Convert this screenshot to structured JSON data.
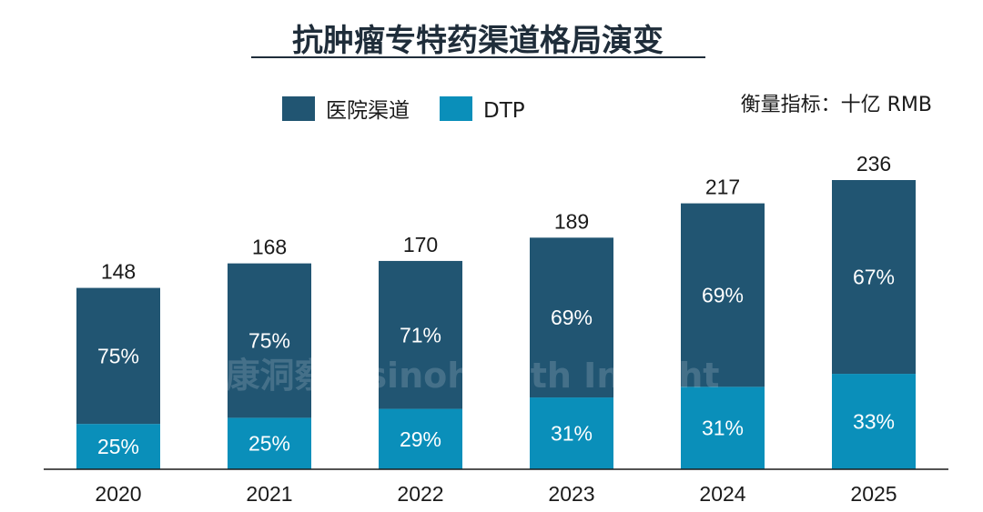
{
  "chart_data": {
    "type": "bar",
    "stacked": true,
    "title": "抗肿瘤专特药渠道格局演变",
    "unit_note": "衡量指标：十亿 RMB",
    "watermark": "中康洞察 · sinohealth Insight",
    "categories": [
      "2020",
      "2021",
      "2022",
      "2023",
      "2024",
      "2025"
    ],
    "totals": [
      148,
      168,
      170,
      189,
      217,
      236
    ],
    "series": [
      {
        "name": "DTP",
        "color": "#0a8fba",
        "share_pct": [
          25,
          25,
          29,
          31,
          31,
          33
        ]
      },
      {
        "name": "医院渠道",
        "color": "#215572",
        "share_pct": [
          75,
          75,
          71,
          69,
          69,
          67
        ]
      }
    ],
    "legend_order": [
      "医院渠道",
      "DTP"
    ],
    "legend_position": "top-left",
    "ylim": [
      0,
      236
    ],
    "grid": false
  }
}
